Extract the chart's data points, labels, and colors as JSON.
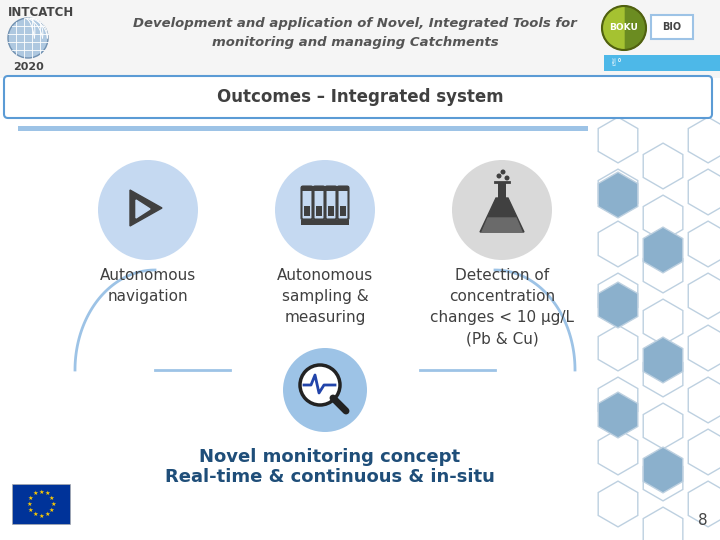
{
  "bg_color": "#ffffff",
  "header_bg": "#f5f5f5",
  "header_title": "Development and application of Novel, Integrated Tools for\nmonitoring and managing Catchments",
  "header_title_color": "#555555",
  "intcatch_text": "INTCATCH",
  "intcatch_year": "2020",
  "banner_color": "#4db8e8",
  "outcomes_title": "Outcomes – Integrated system",
  "outcomes_box_border": "#5b9bd5",
  "outcomes_box_bg": "#ffffff",
  "outcomes_title_color": "#404040",
  "separator_color": "#9dc3e6",
  "circle1_color": "#c5d9f1",
  "circle2_color": "#c5d9f1",
  "circle3_color": "#d9d9d9",
  "circle4_color": "#9dc3e6",
  "label1": "Autonomous\nnavigation",
  "label2": "Autonomous\nsampling &\nmeasuring",
  "label3": "Detection of\nconcentration\nchanges < 10 μg/L\n(Pb & Cu)",
  "label4_line1": "Novel monitoring concept",
  "label4_line2": "Real-time & continuous & in-situ",
  "label_color": "#404040",
  "label4_color": "#1f4e79",
  "arc_color": "#9dc3e6",
  "hex_border": "#bdd0e0",
  "hex_fill": "#ffffff",
  "hex_icon_color": "#8bb0cc",
  "slide_num": "8",
  "eu_flag_blue": "#003399",
  "eu_flag_yellow": "#ffcc00",
  "boku_green_dark": "#6b8c21",
  "boku_green_light": "#a5c231",
  "bio_border": "#9dc3e6",
  "icon_color": "#404040"
}
